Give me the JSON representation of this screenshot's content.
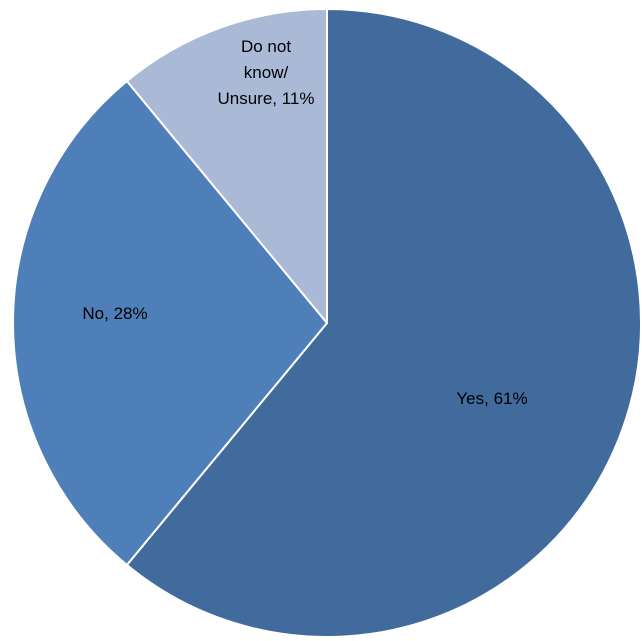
{
  "chart_data": {
    "type": "pie",
    "slices": [
      {
        "label_lines": [
          "Yes, 61%"
        ],
        "category": "Yes",
        "value": 61,
        "color": "#416b9c"
      },
      {
        "label_lines": [
          "No, 28%"
        ],
        "category": "No",
        "value": 28,
        "color": "#4f7fb8"
      },
      {
        "label_lines": [
          "Do not",
          "know/",
          "Unsure, 11%"
        ],
        "category": "Do not know/ Unsure",
        "value": 11,
        "color": "#a9b9d6"
      }
    ],
    "start": "12 o'clock",
    "direction": "clockwise",
    "legend": "none",
    "labels": "inside slices"
  }
}
